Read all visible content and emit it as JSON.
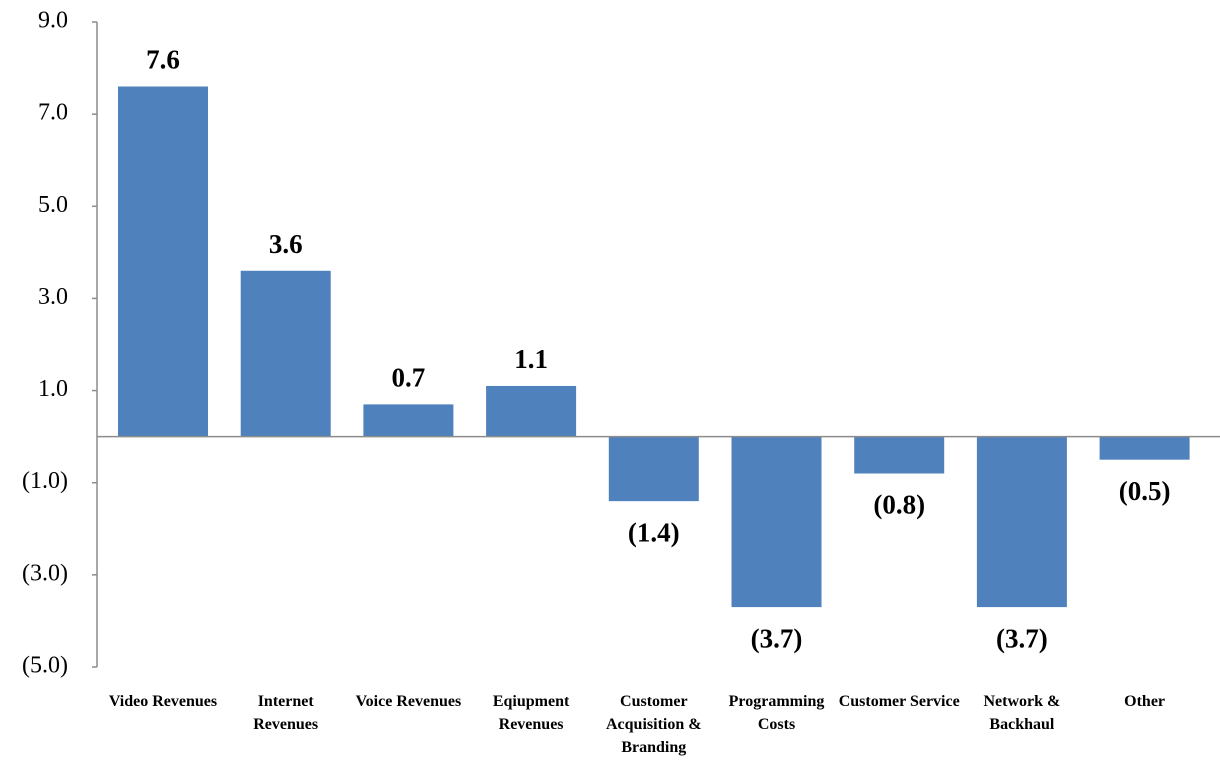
{
  "chart_data": {
    "type": "bar",
    "categories": [
      "Video Revenues",
      "Internet Revenues",
      "Voice Revenues",
      "Eqiupment Revenues",
      "Customer Acquisition & Branding",
      "Programming Costs",
      "Customer Service",
      "Network & Backhaul",
      "Other"
    ],
    "values": [
      7.6,
      3.6,
      0.7,
      1.1,
      -1.4,
      -3.7,
      -0.8,
      -3.7,
      -0.5
    ],
    "value_labels": [
      "7.6",
      "3.6",
      "0.7",
      "1.1",
      "(1.4)",
      "(3.7)",
      "(0.8)",
      "(3.7)",
      "(0.5)"
    ],
    "color": "#4f81bd",
    "ylim": [
      -5,
      9
    ],
    "yticks": [
      {
        "value": -5,
        "label": "(5.0)"
      },
      {
        "value": -3,
        "label": "(3.0)"
      },
      {
        "value": -1,
        "label": "(1.0)"
      },
      {
        "value": 1,
        "label": "1.0"
      },
      {
        "value": 3,
        "label": "3.0"
      },
      {
        "value": 5,
        "label": "5.0"
      },
      {
        "value": 7,
        "label": "7.0"
      },
      {
        "value": 9,
        "label": "9.0"
      }
    ],
    "grid": false
  }
}
